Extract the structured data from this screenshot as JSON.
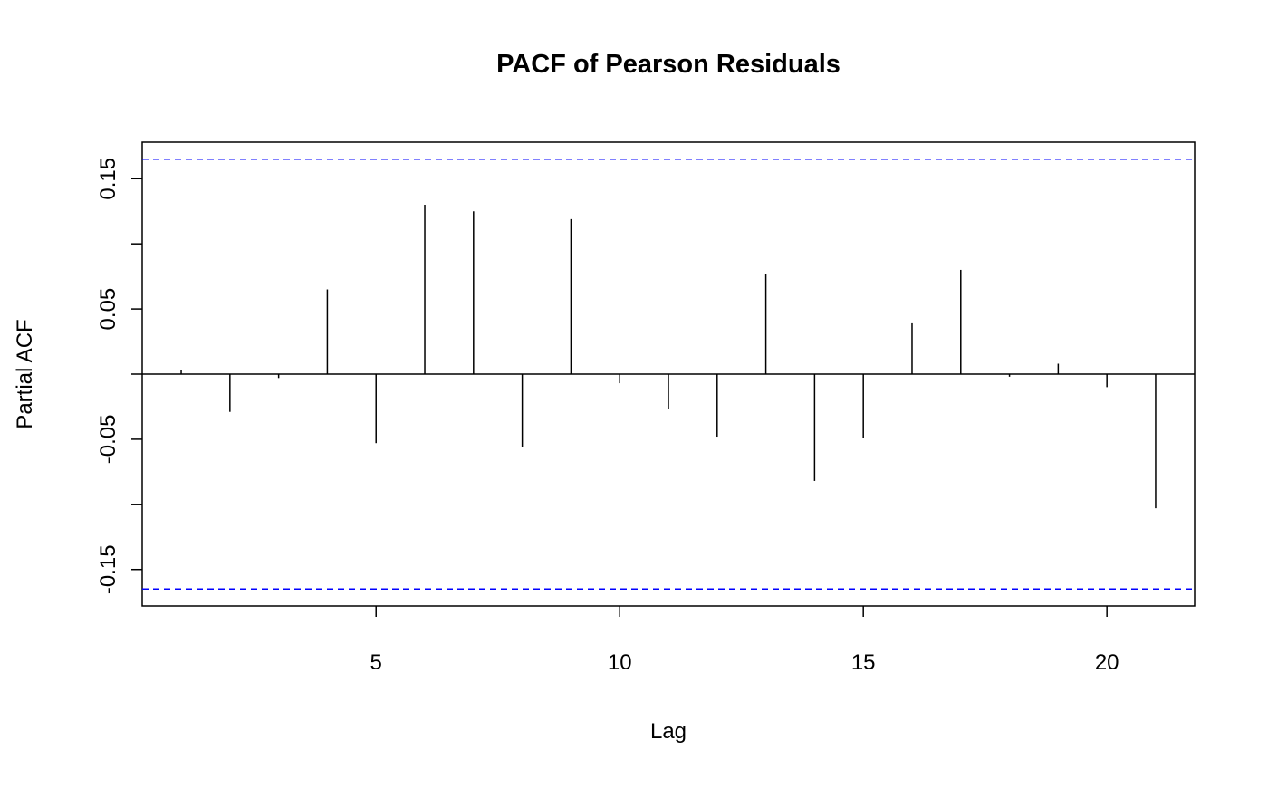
{
  "chart_data": {
    "type": "pacf",
    "title": "PACF of Pearson Residuals",
    "x_label": "Lag",
    "y_label": "Partial ACF",
    "x": [
      1,
      2,
      3,
      4,
      5,
      6,
      7,
      8,
      9,
      10,
      11,
      12,
      13,
      14,
      15,
      16,
      17,
      18,
      19,
      20,
      21
    ],
    "values": [
      0.003,
      -0.029,
      -0.003,
      0.065,
      -0.053,
      0.13,
      0.125,
      -0.056,
      0.119,
      -0.007,
      -0.027,
      -0.048,
      0.077,
      -0.082,
      -0.049,
      0.039,
      0.08,
      -0.002,
      0.008,
      -0.01,
      -0.103
    ],
    "color": "#000000",
    "confidence_limit": 0.165,
    "confidence_color": "#0000ff",
    "xlim": [
      0.2,
      21.8
    ],
    "xticks": [
      5,
      10,
      15,
      20
    ],
    "ylim": [
      -0.178,
      0.178
    ],
    "yticks": [
      -0.15,
      {
        "value": -0.1,
        "label": null
      },
      -0.05,
      {
        "value": 0,
        "label": null
      },
      0.05,
      {
        "value": 0.1,
        "label": null
      },
      0.15
    ]
  }
}
